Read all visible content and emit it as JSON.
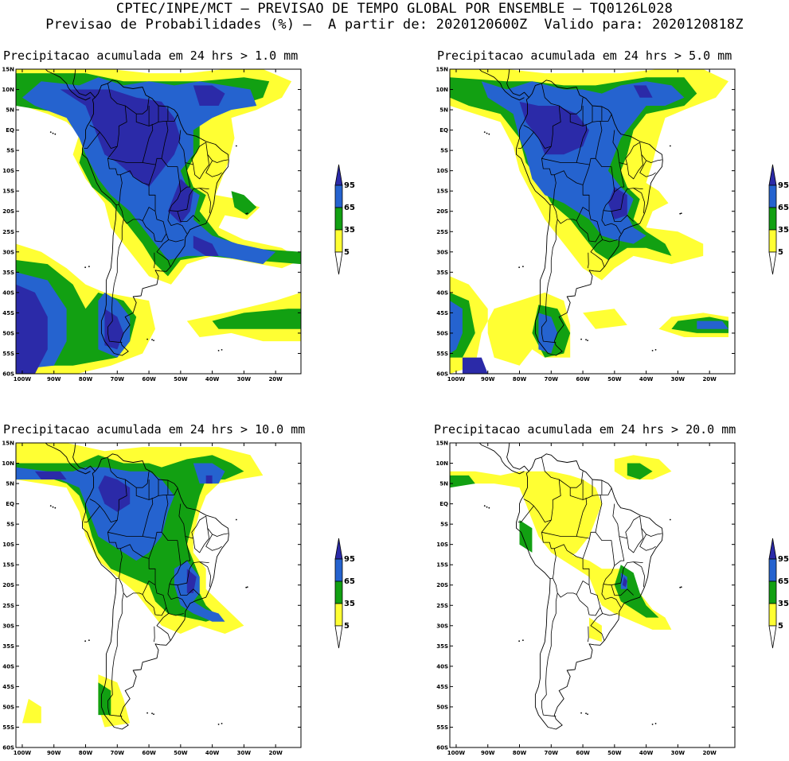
{
  "header": {
    "line1": "CPTEC/INPE/MCT – PREVISAO DE TEMPO GLOBAL POR ENSEMBLE – TQ0126L028",
    "line2": "Previsao de Probabilidades (%) –  A partir de: 2020120600Z  Valido para: 2020120818Z"
  },
  "axes": {
    "lat_labels": [
      "15N",
      "10N",
      "5N",
      "EQ",
      "5S",
      "10S",
      "15S",
      "20S",
      "25S",
      "30S",
      "35S",
      "40S",
      "45S",
      "50S",
      "55S",
      "60S"
    ],
    "lon_labels": [
      "100W",
      "90W",
      "80W",
      "70W",
      "60W",
      "50W",
      "40W",
      "30W",
      "20W"
    ]
  },
  "legend": {
    "levels": [
      "95",
      "65",
      "35",
      "5"
    ],
    "colors": {
      "c95": "#2b2aa8",
      "c65": "#2563cf",
      "c35": "#12a012",
      "c5": "#ffff33"
    }
  },
  "panels": [
    {
      "title": "Precipitacao acumulada em 24 hrs > 1.0 mm",
      "threshold_mm": 1.0
    },
    {
      "title": "Precipitacao acumulada em 24 hrs > 5.0 mm",
      "threshold_mm": 5.0
    },
    {
      "title": "Precipitacao acumulada em 24 hrs > 10.0 mm",
      "threshold_mm": 10.0
    },
    {
      "title": "Precipitacao acumulada em 24 hrs > 20.0 mm",
      "threshold_mm": 20.0
    }
  ]
}
